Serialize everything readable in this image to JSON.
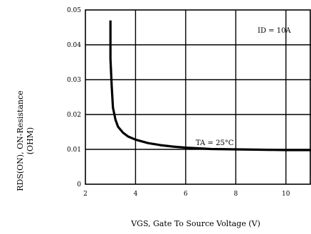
{
  "chart_data": {
    "type": "line",
    "title": "",
    "xlabel": "VGS, Gate To Source Voltage (V)",
    "ylabel_lines": [
      "RDS(ON), ON-Resistance",
      "(OHM)"
    ],
    "xlim": [
      2,
      11
    ],
    "ylim": [
      0,
      0.05
    ],
    "xticks": [
      2,
      4,
      6,
      8,
      10
    ],
    "xtick_labels": [
      "2",
      "4",
      "6",
      "8",
      "10"
    ],
    "yticks": [
      0,
      0.01,
      0.02,
      0.03,
      0.04,
      0.05
    ],
    "ytick_labels": [
      "0",
      "0.01",
      "0.02",
      "0.03",
      "0.04",
      "0.05"
    ],
    "grid": true,
    "annotations": {
      "current": "ID = 10A",
      "temperature": "TA = 25°C"
    },
    "series": [
      {
        "x": [
          3.0,
          3.0,
          3.05,
          3.1,
          3.2,
          3.3,
          3.5,
          3.7,
          4.0,
          4.5,
          5.0,
          5.5,
          6.0,
          6.5,
          7.0,
          8.0,
          9.0,
          10.0,
          11.0
        ],
        "y": [
          0.047,
          0.036,
          0.028,
          0.022,
          0.0185,
          0.0165,
          0.0148,
          0.0137,
          0.0128,
          0.0118,
          0.0112,
          0.0108,
          0.0105,
          0.0103,
          0.0101,
          0.01,
          0.0099,
          0.0098,
          0.0098
        ]
      }
    ]
  }
}
